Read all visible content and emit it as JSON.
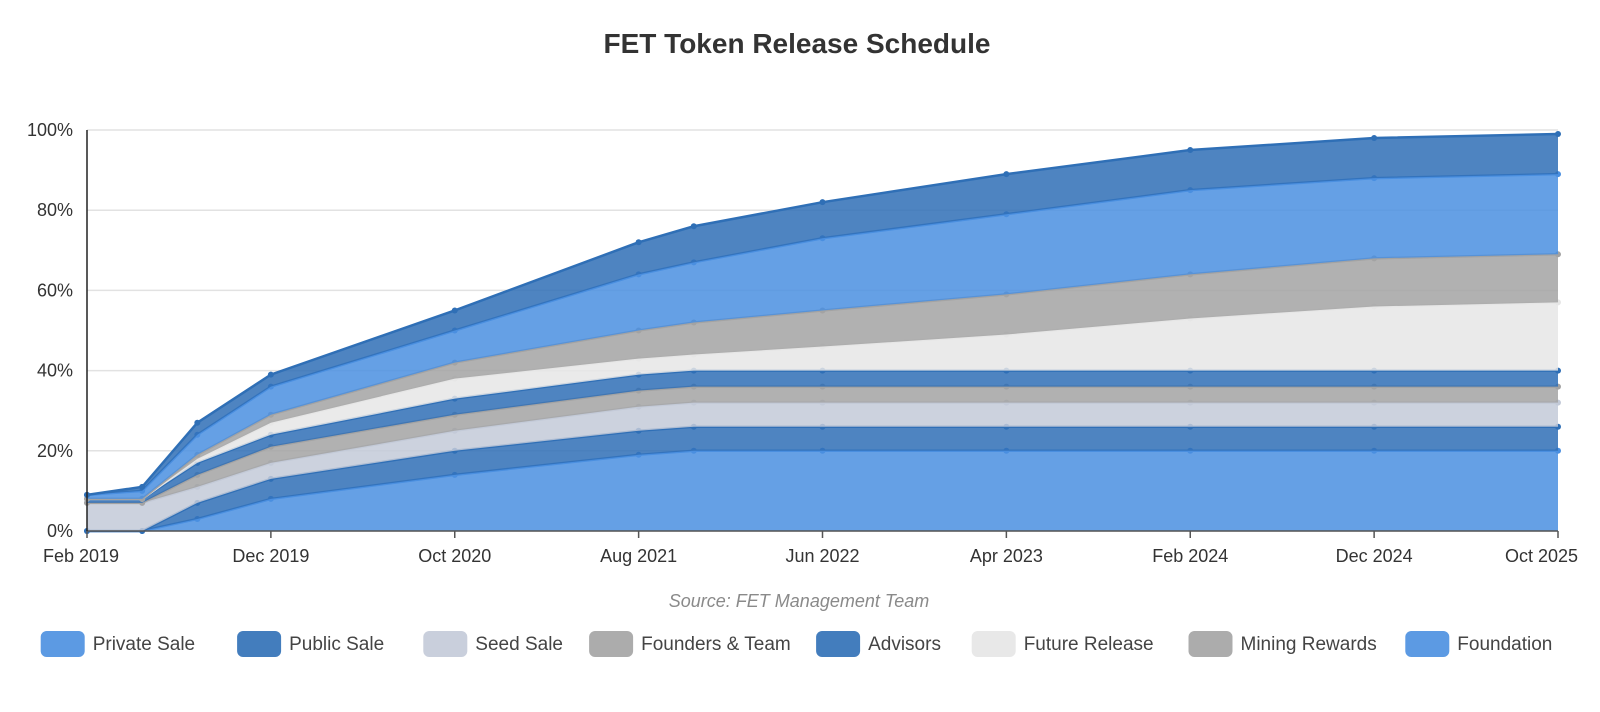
{
  "chart_data": {
    "type": "area",
    "stacked": true,
    "title": "FET Token Release Schedule",
    "source": "Source: FET Management Team",
    "x_start": "Feb 2019",
    "x_end": "Oct 2025",
    "x_ticks": [
      "Feb 2019",
      "Dec 2019",
      "Oct 2020",
      "Aug 2021",
      "Jun 2022",
      "Apr 2023",
      "Feb 2024",
      "Dec 2024",
      "Oct 2025"
    ],
    "y_ticks": [
      "0%",
      "20%",
      "40%",
      "60%",
      "80%",
      "100%"
    ],
    "ylim": [
      0,
      100
    ],
    "grid": true,
    "legend_position": "bottom",
    "x": [
      "Feb 2019",
      "May 2019",
      "Aug 2019",
      "Dec 2019",
      "Oct 2020",
      "Aug 2021",
      "Nov 2021",
      "Jun 2022",
      "Apr 2023",
      "Feb 2024",
      "Dec 2024",
      "Oct 2025"
    ],
    "series": [
      {
        "name": "Private Sale",
        "color": "#4a8fe0",
        "values": [
          0,
          0,
          3,
          8,
          14,
          19,
          20,
          20,
          20,
          20,
          20,
          20
        ]
      },
      {
        "name": "Public Sale",
        "color": "#2f6fb6",
        "values": [
          0,
          0,
          4,
          5,
          6,
          6,
          6,
          6,
          6,
          6,
          6,
          6
        ]
      },
      {
        "name": "Seed Sale",
        "color": "#c3cad8",
        "values": [
          7,
          7,
          4,
          4,
          5,
          6,
          6,
          6,
          6,
          6,
          6,
          6
        ]
      },
      {
        "name": "Founders & Team",
        "color": "#a3a3a3",
        "values": [
          0,
          0,
          3,
          4,
          4,
          4,
          4,
          4,
          4,
          4,
          4,
          4
        ]
      },
      {
        "name": "Advisors",
        "color": "#2f6fb6",
        "values": [
          1,
          1,
          3,
          3,
          4,
          4,
          4,
          4,
          4,
          4,
          4,
          4
        ]
      },
      {
        "name": "Future Release",
        "color": "#e6e6e6",
        "values": [
          0,
          0,
          1,
          3,
          5,
          4,
          4,
          6,
          9,
          13,
          16,
          17
        ]
      },
      {
        "name": "Mining Rewards",
        "color": "#a3a3a3",
        "values": [
          0,
          0,
          1,
          2,
          4,
          7,
          8,
          9,
          10,
          11,
          12,
          12
        ]
      },
      {
        "name": "Foundation",
        "color": "#4a8fe0",
        "values": [
          1,
          2,
          5,
          7,
          8,
          14,
          15,
          18,
          20,
          21,
          20,
          20
        ]
      },
      {
        "name": "",
        "color": "#2f6fb6",
        "values": [
          0,
          1,
          3,
          3,
          5,
          8,
          9,
          9,
          10,
          10,
          10,
          10
        ]
      }
    ]
  }
}
